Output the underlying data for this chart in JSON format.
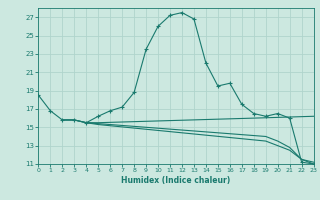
{
  "xlabel": "Humidex (Indice chaleur)",
  "bg_color": "#cce8e0",
  "grid_color": "#b0d4cc",
  "line_color": "#1a7a6e",
  "curve1_x": [
    0,
    1,
    2,
    3,
    4,
    5,
    6,
    7,
    8,
    9,
    10,
    11,
    12,
    13,
    14,
    15,
    16,
    17,
    18,
    19,
    20,
    21,
    22,
    23
  ],
  "curve1_y": [
    18.5,
    16.8,
    15.8,
    15.8,
    15.5,
    16.2,
    16.8,
    17.2,
    18.8,
    23.5,
    26.0,
    27.2,
    27.5,
    26.8,
    22.0,
    19.5,
    19.8,
    17.5,
    16.5,
    16.2,
    16.5,
    16.0,
    11.2,
    11.0
  ],
  "curve2_x": [
    2,
    3,
    4,
    5,
    18,
    23
  ],
  "curve2_y": [
    15.8,
    15.8,
    15.5,
    15.5,
    16.0,
    16.2
  ],
  "curve3_x": [
    2,
    3,
    4,
    5,
    19,
    20,
    21,
    22,
    23
  ],
  "curve3_y": [
    15.8,
    15.8,
    15.5,
    15.4,
    14.0,
    13.5,
    12.8,
    11.5,
    11.2
  ],
  "curve4_x": [
    4,
    5,
    19,
    20,
    21,
    22,
    23
  ],
  "curve4_y": [
    15.5,
    15.3,
    13.5,
    13.0,
    12.5,
    11.5,
    11.0
  ],
  "ylim": [
    11,
    28
  ],
  "xlim": [
    0,
    23
  ],
  "yticks": [
    11,
    13,
    15,
    17,
    19,
    21,
    23,
    25,
    27
  ],
  "xticks": [
    0,
    1,
    2,
    3,
    4,
    5,
    6,
    7,
    8,
    9,
    10,
    11,
    12,
    13,
    14,
    15,
    16,
    17,
    18,
    19,
    20,
    21,
    22,
    23
  ]
}
